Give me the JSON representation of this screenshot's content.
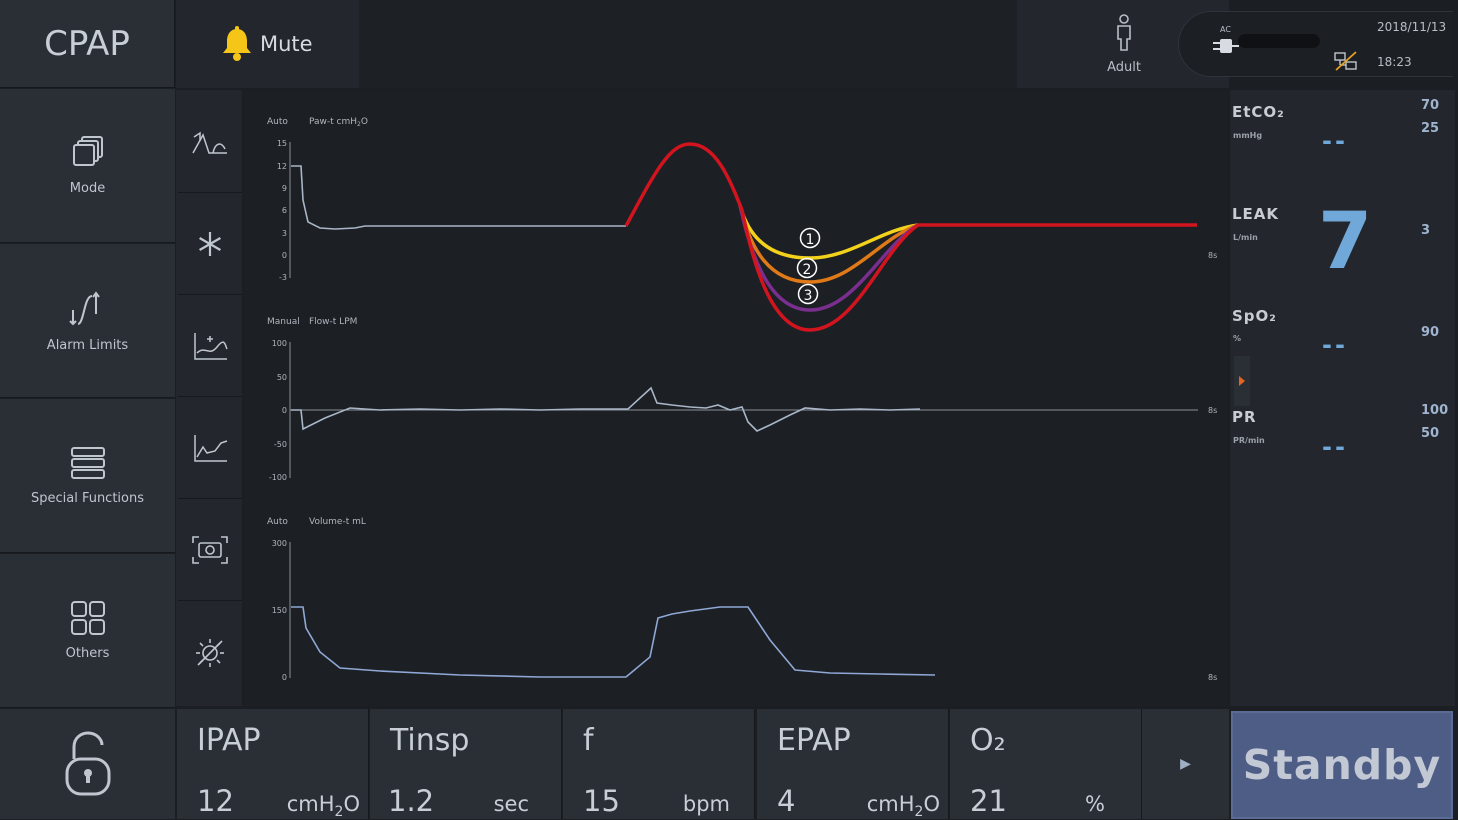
{
  "header": {
    "mode": "CPAP",
    "mute_label": "Mute",
    "patient_type": "Adult",
    "power_label": "AC",
    "date": "2018/11/13",
    "time": "18:23"
  },
  "nav": {
    "items": [
      {
        "label": "Mode",
        "icon": "mode-stack-icon"
      },
      {
        "label": "Alarm Limits",
        "icon": "alarm-limits-icon"
      },
      {
        "label": "Special Functions",
        "icon": "special-functions-icon"
      },
      {
        "label": "Others",
        "icon": "grid-icon"
      }
    ],
    "lock_icon": "unlock-icon"
  },
  "tools": [
    "waveform-freeze-icon",
    "snowflake-icon",
    "loop-graph-icon",
    "trend-graph-icon",
    "screenshot-icon",
    "brightness-off-icon"
  ],
  "waves": {
    "paw": {
      "scale_mode": "Auto",
      "title": "Paw-t cmH",
      "title_sub": "2",
      "title_end": "O",
      "ticks": [
        "15",
        "12",
        "9",
        "6",
        "3",
        "0",
        "-3"
      ],
      "time": "8s"
    },
    "flow": {
      "scale_mode": "Manual",
      "title": "Flow-t LPM",
      "ticks": [
        "100",
        "50",
        "0",
        "-50",
        "-100"
      ],
      "time": "8s"
    },
    "volume": {
      "scale_mode": "Auto",
      "title": "Volume-t mL",
      "ticks": [
        "300",
        "150",
        "0"
      ],
      "time": "8s"
    }
  },
  "overlay": {
    "labels": [
      "①",
      "②",
      "③"
    ],
    "colors": {
      "main": "#d2141e",
      "c1": "#f3d21c",
      "c2": "#e07a18",
      "c3": "#7a2f8e"
    }
  },
  "monitor": {
    "etco2": {
      "name": "EtCO₂",
      "unit": "mmHg",
      "high": "70",
      "low": "25",
      "value": "--"
    },
    "leak": {
      "name": "LEAK",
      "unit": "L/min",
      "limit": "3",
      "value": "7"
    },
    "spo2": {
      "name": "SpO₂",
      "unit": "%",
      "limit": "90",
      "value": "--"
    },
    "pr": {
      "name": "PR",
      "unit": "PR/min",
      "high": "100",
      "low": "50",
      "value": "--"
    }
  },
  "settings": [
    {
      "name": "IPAP",
      "value": "12",
      "unit": "cmH",
      "unit_sub": "2",
      "unit_end": "O"
    },
    {
      "name": "Tinsp",
      "value": "1.2",
      "unit": "sec",
      "unit_sub": "",
      "unit_end": ""
    },
    {
      "name": "f",
      "value": "15",
      "unit": "bpm",
      "unit_sub": "",
      "unit_end": ""
    },
    {
      "name": "EPAP",
      "value": "4",
      "unit": "cmH",
      "unit_sub": "2",
      "unit_end": "O"
    },
    {
      "name": "O₂",
      "value": "21",
      "unit": "%",
      "unit_sub": "",
      "unit_end": ""
    }
  ],
  "standby_label": "Standby",
  "theme": {
    "accent": "#6fa8d9",
    "standby_bg": "#4d5d86",
    "mute_bell": "#f5c518"
  }
}
